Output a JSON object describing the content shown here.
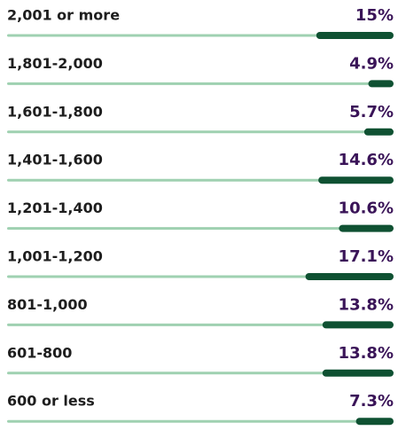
{
  "chart_data": {
    "type": "bar",
    "categories": [
      "2,001 or more",
      "1,801-2,000",
      "1,601-1,800",
      "1,401-1,600",
      "1,201-1,400",
      "1,001-1,200",
      "801-1,000",
      "601-800",
      "600 or less"
    ],
    "values": [
      15,
      4.9,
      5.7,
      14.6,
      10.6,
      17.1,
      13.8,
      13.8,
      7.3
    ],
    "value_labels": [
      "15%",
      "4.9%",
      "5.7%",
      "14.6%",
      "10.6%",
      "17.1%",
      "13.8%",
      "13.8%",
      "7.3%"
    ],
    "color": "#0f5132",
    "track_color": "#9fd1b1",
    "xlim": [
      0,
      75
    ]
  }
}
